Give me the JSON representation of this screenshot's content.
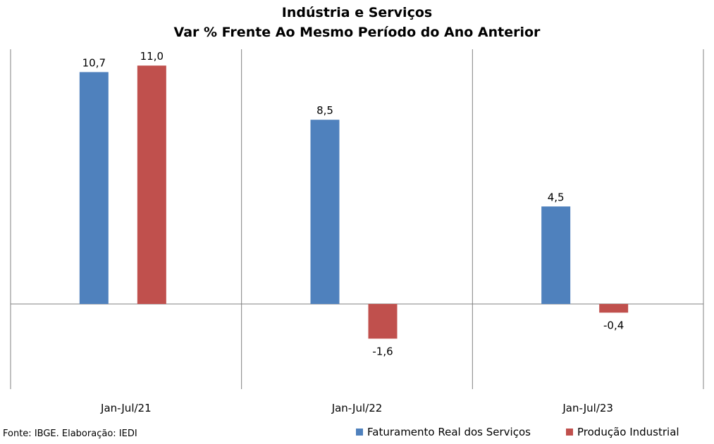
{
  "chart_data": {
    "type": "bar",
    "title": "Indústria e Serviços",
    "subtitle": "Var % Frente Ao Mesmo Período do Ano Anterior",
    "categories": [
      "Jan-Jul/21",
      "Jan-Jul/22",
      "Jan-Jul/23"
    ],
    "series": [
      {
        "name": "Faturamento Real dos Serviços",
        "color": "#4f81bd",
        "values": [
          10.7,
          8.5,
          4.5
        ],
        "labels": [
          "10,7",
          "8,5",
          "4,5"
        ]
      },
      {
        "name": "Produção Industrial",
        "color": "#c0504d",
        "values": [
          11.0,
          -1.6,
          -0.4
        ],
        "labels": [
          "11,0",
          "-1,6",
          "-0,4"
        ]
      }
    ],
    "ylim": [
      -4,
      12
    ],
    "grid": false,
    "legend": "bottom-right"
  },
  "source": "Fonte: IBGE. Elaboração: IEDI"
}
